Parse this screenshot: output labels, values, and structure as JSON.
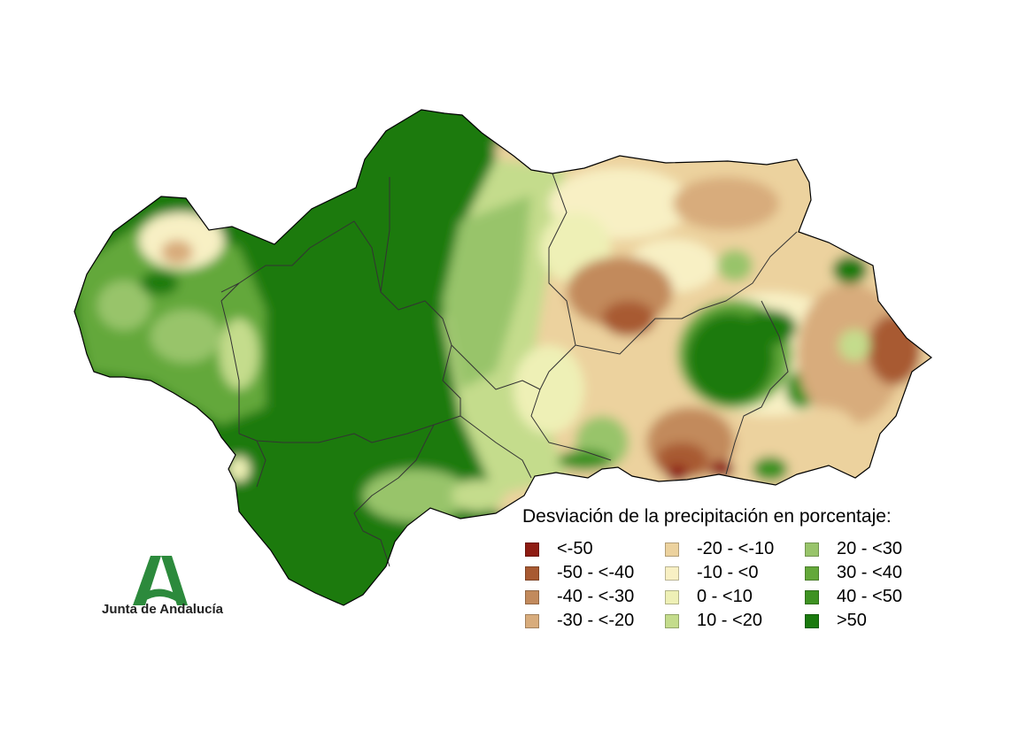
{
  "legend": {
    "title": "Desviación de la precipitación en porcentaje:",
    "items": [
      {
        "label": "<-50",
        "color": "#8e1c12"
      },
      {
        "label": "-50 - <-40",
        "color": "#a85a32"
      },
      {
        "label": "-40 - <-30",
        "color": "#c28a5c"
      },
      {
        "label": "-30 - <-20",
        "color": "#d8ac7c"
      },
      {
        "label": "-20 - <-10",
        "color": "#ecd29e"
      },
      {
        "label": "-10 - <0",
        "color": "#f8f0c4"
      },
      {
        "label": "0 - <10",
        "color": "#eef0b6"
      },
      {
        "label": "10 - <20",
        "color": "#c4dc8c"
      },
      {
        "label": "20 - <30",
        "color": "#98c46a"
      },
      {
        "label": "30 - <40",
        "color": "#64a83a"
      },
      {
        "label": "40 - <50",
        "color": "#3e9222"
      },
      {
        "label": ">50",
        "color": "#1a7a0e"
      }
    ]
  },
  "logo": {
    "text": "Junta de Andalucía",
    "color": "#2c8a3c"
  }
}
